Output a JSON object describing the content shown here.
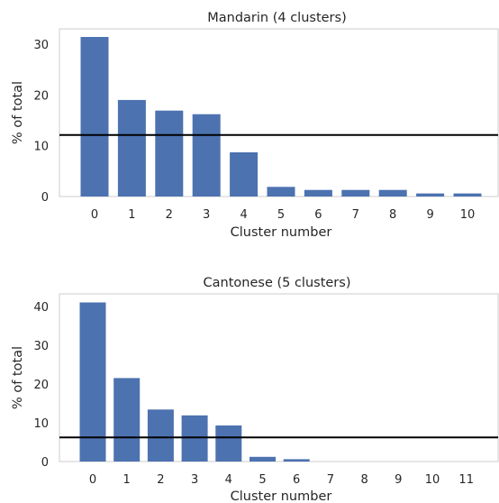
{
  "chart_data": [
    {
      "type": "bar",
      "title": "Mandarin (4 clusters)",
      "xlabel": "Cluster number",
      "ylabel": "% of total",
      "categories": [
        "0",
        "1",
        "2",
        "3",
        "4",
        "5",
        "6",
        "7",
        "8",
        "9",
        "10"
      ],
      "values": [
        31.4,
        19.0,
        16.9,
        16.2,
        8.7,
        1.9,
        1.3,
        1.3,
        1.3,
        0.6,
        0.6
      ],
      "hline": 12.1,
      "yticks": [
        0,
        10,
        20,
        30
      ],
      "ylim": [
        0,
        33.0
      ],
      "grid": false,
      "bar_color": "#4c72b0",
      "line_color": "#000000"
    },
    {
      "type": "bar",
      "title": "Cantonese (5 clusters)",
      "xlabel": "Cluster number",
      "ylabel": "% of total",
      "categories": [
        "0",
        "1",
        "2",
        "3",
        "4",
        "5",
        "6",
        "7",
        "8",
        "9",
        "10",
        "11"
      ],
      "values": [
        41.0,
        21.5,
        13.4,
        11.9,
        9.3,
        1.2,
        0.6,
        0,
        0,
        0,
        0,
        0
      ],
      "hline": 6.2,
      "yticks": [
        0,
        10,
        20,
        30,
        40
      ],
      "ylim": [
        0,
        43.2
      ],
      "grid": false,
      "bar_color": "#4c72b0",
      "line_color": "#000000"
    }
  ]
}
